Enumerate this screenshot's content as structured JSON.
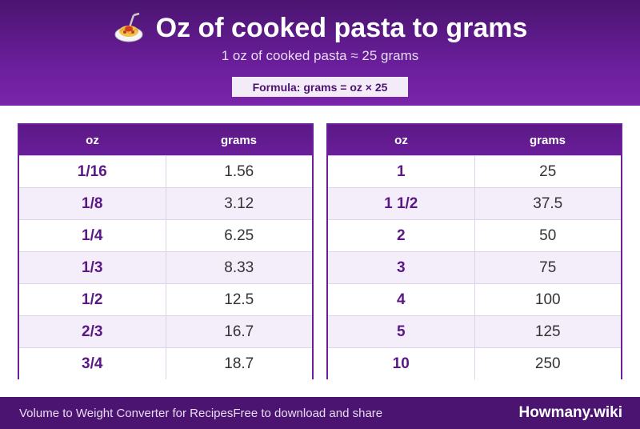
{
  "header": {
    "title": "Oz of cooked pasta to grams",
    "subtitle": "1 oz of cooked pasta ≈ 25 grams",
    "formula": "Formula: grams = oz × 25",
    "icon": "spaghetti-icon"
  },
  "tables": [
    {
      "headers": [
        "oz",
        "grams"
      ],
      "rows": [
        [
          "1/16",
          "1.56"
        ],
        [
          "1/8",
          "3.12"
        ],
        [
          "1/4",
          "6.25"
        ],
        [
          "1/3",
          "8.33"
        ],
        [
          "1/2",
          "12.5"
        ],
        [
          "2/3",
          "16.7"
        ],
        [
          "3/4",
          "18.7"
        ]
      ]
    },
    {
      "headers": [
        "oz",
        "grams"
      ],
      "rows": [
        [
          "1",
          "25"
        ],
        [
          "1 1/2",
          "37.5"
        ],
        [
          "2",
          "50"
        ],
        [
          "3",
          "75"
        ],
        [
          "4",
          "100"
        ],
        [
          "5",
          "125"
        ],
        [
          "10",
          "250"
        ]
      ]
    }
  ],
  "footer": {
    "left_text": "Volume to Weight Converter for RecipesFree to download and share",
    "brand": "Howmany.wiki"
  },
  "colors": {
    "primary": "#6a1e9a",
    "dark": "#4a1470",
    "row_alt": "#f4eefa"
  }
}
